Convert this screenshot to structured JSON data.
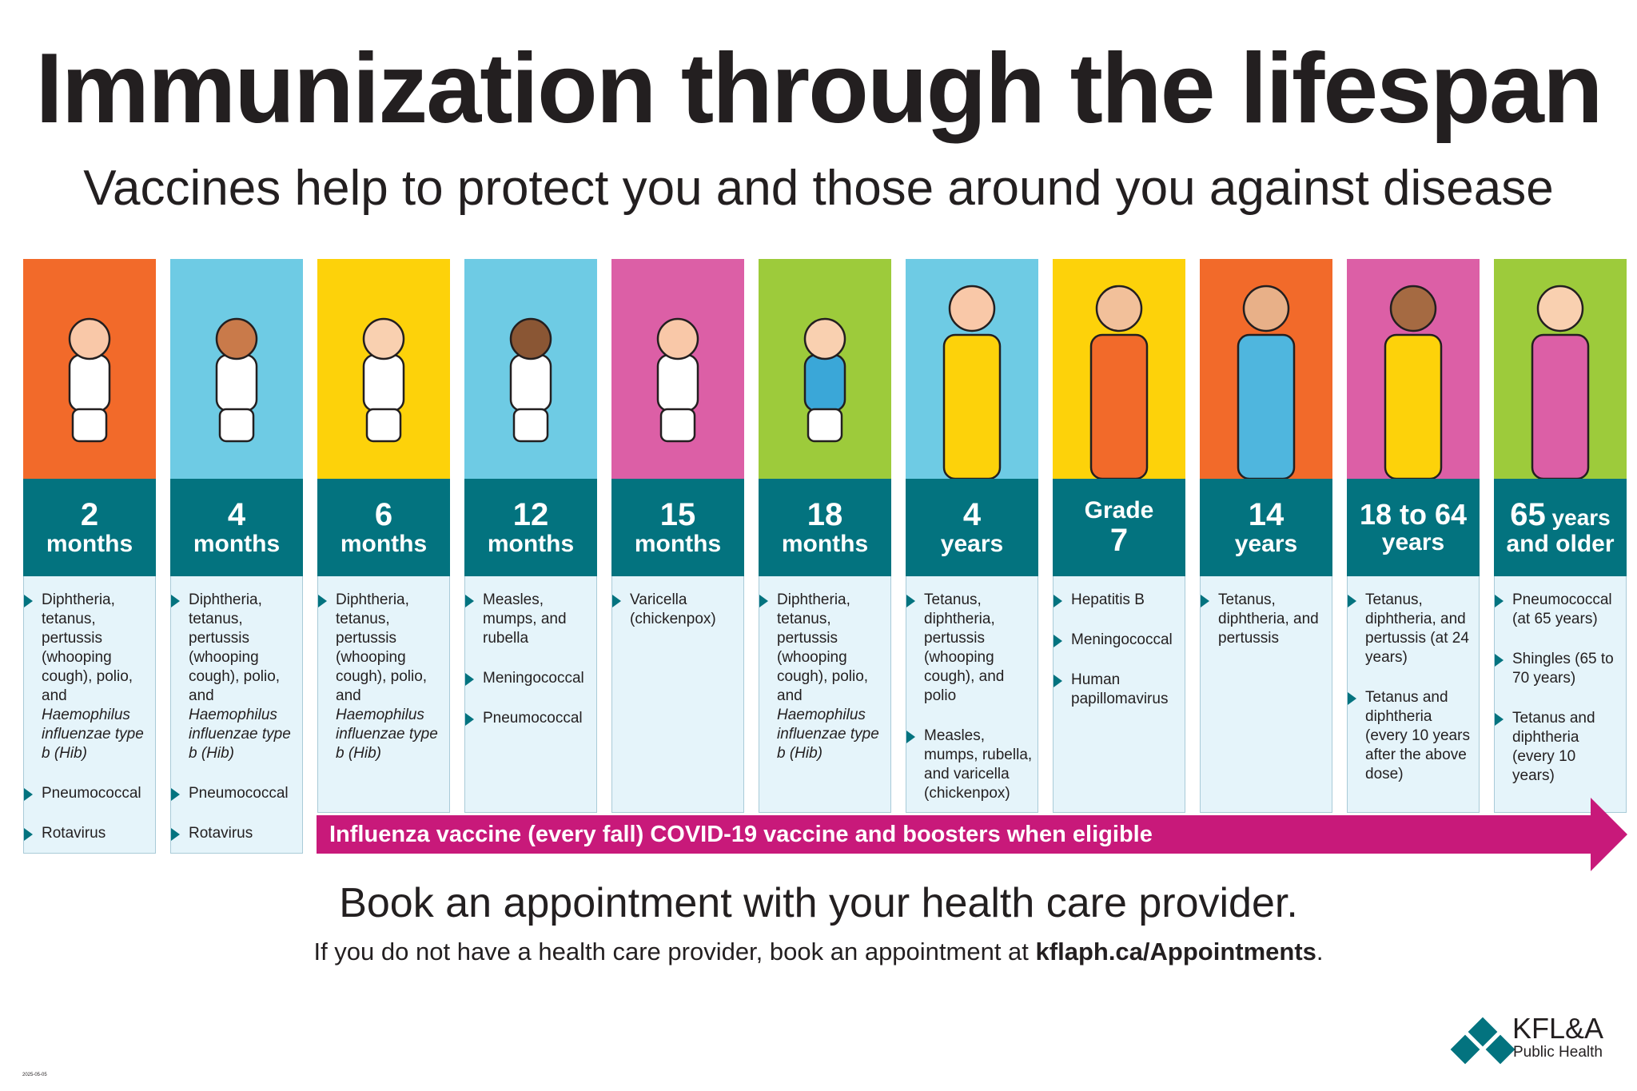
{
  "title": "Immunization through the lifespan",
  "subtitle": "Vaccines help to protect you and those around you against disease",
  "colors": {
    "teal": "#03737f",
    "orange": "#f26a2a",
    "blue": "#6ecbe4",
    "yellow": "#fdd20a",
    "pink": "#dc5fa6",
    "green": "#9dcb3b",
    "magenta": "#c8197a",
    "panel": "#e5f4fa"
  },
  "columns": [
    {
      "n": "2",
      "u": "months",
      "bg": "#f26a2a",
      "items": [
        "Diphtheria, tetanus, pertussis (whooping cough), polio, and |Haemophilus influenzae type b (Hib)",
        "Pneumococcal",
        "Rotavirus"
      ]
    },
    {
      "n": "4",
      "u": "months",
      "bg": "#6ecbe4",
      "items": [
        "Diphtheria, tetanus, pertussis (whooping cough), polio, and |Haemophilus influenzae type b (Hib)",
        "Pneumococcal",
        "Rotavirus"
      ]
    },
    {
      "n": "6",
      "u": "months",
      "bg": "#fdd20a",
      "items": [
        "Diphtheria, tetanus, pertussis (whooping cough), polio, and |Haemophilus influenzae type b (Hib)"
      ]
    },
    {
      "n": "12",
      "u": "months",
      "bg": "#6ecbe4",
      "items": [
        "Measles, mumps, and rubella",
        "Meningococcal",
        "Pneumococcal"
      ]
    },
    {
      "n": "15",
      "u": "months",
      "bg": "#dc5fa6",
      "items": [
        "Varicella (chickenpox)"
      ]
    },
    {
      "n": "18",
      "u": "months",
      "bg": "#9dcb3b",
      "items": [
        "Diphtheria, tetanus, pertussis (whooping cough), polio, and |Haemophilus influenzae type b (Hib)"
      ]
    },
    {
      "n": "4",
      "u": "years",
      "bg": "#6ecbe4",
      "items": [
        "Tetanus, diphtheria, pertussis (whooping cough), and polio",
        "Measles, mumps, rubella, and varicella (chickenpox)"
      ]
    },
    {
      "n": "Grade",
      "u": "7",
      "bg": "#fdd20a",
      "items": [
        "Hepatitis B",
        "Meningococcal",
        "Human papillomavirus"
      ]
    },
    {
      "n": "14",
      "u": "years",
      "bg": "#f26a2a",
      "items": [
        "Tetanus, diphtheria, and pertussis"
      ]
    },
    {
      "n": "18 to 64",
      "u": "years",
      "bg": "#dc5fa6",
      "items": [
        "Tetanus, diphtheria, and pertussis (at 24 years)",
        "Tetanus and diphtheria (every 10 years after the above dose)"
      ]
    },
    {
      "n": "65",
      "n2": "years",
      "u": "and older",
      "bg": "#9dcb3b",
      "items": [
        "Pneumococcal (at 65 years)",
        "Shingles (65 to 70 years)",
        "Tetanus and diphtheria (every 10 years)"
      ]
    }
  ],
  "arrow_text": "Influenza vaccine (every fall) COVID-19 vaccine and boosters when eligible",
  "book": "Book an appointment with your health care provider.",
  "note_prefix": "If you do not have a health care provider, book an appointment at ",
  "note_link": "kflaph.ca/Appointments",
  "note_suffix": ".",
  "date": "2025-05-05",
  "logo": {
    "name": "KFL&A",
    "sub": "Public Health"
  }
}
